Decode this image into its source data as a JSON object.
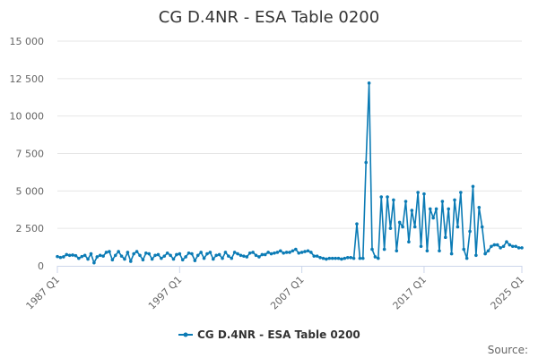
{
  "chart_data": {
    "type": "line",
    "title": "CG D.4NR - ESA Table 0200",
    "xlabel": "",
    "ylabel": "",
    "ylim": [
      0,
      15000
    ],
    "y_ticks": [
      {
        "value": 0,
        "label": "0"
      },
      {
        "value": 2500,
        "label": "2 500"
      },
      {
        "value": 5000,
        "label": "5 000"
      },
      {
        "value": 7500,
        "label": "7 500"
      },
      {
        "value": 10000,
        "label": "10 000"
      },
      {
        "value": 12500,
        "label": "12 500"
      },
      {
        "value": 15000,
        "label": "15 000"
      }
    ],
    "x_range": [
      "1987 Q1",
      "2025 Q1"
    ],
    "x_ticks": [
      "1987 Q1",
      "1997 Q1",
      "2007 Q1",
      "2017 Q1",
      "2025 Q1"
    ],
    "grid": "horizontal",
    "legend_position": "bottom",
    "series": [
      {
        "name": "CG D.4NR - ESA Table 0200",
        "color": "#0b7bb5",
        "points": [
          [
            "1987 Q1",
            620
          ],
          [
            "1987 Q2",
            560
          ],
          [
            "1987 Q3",
            600
          ],
          [
            "1987 Q4",
            750
          ],
          [
            "1988 Q1",
            700
          ],
          [
            "1988 Q2",
            720
          ],
          [
            "1988 Q3",
            680
          ],
          [
            "1988 Q4",
            500
          ],
          [
            "1989 Q1",
            620
          ],
          [
            "1989 Q2",
            700
          ],
          [
            "1989 Q3",
            450
          ],
          [
            "1989 Q4",
            800
          ],
          [
            "1990 Q1",
            200
          ],
          [
            "1990 Q2",
            600
          ],
          [
            "1990 Q3",
            700
          ],
          [
            "1990 Q4",
            650
          ],
          [
            "1991 Q1",
            900
          ],
          [
            "1991 Q2",
            950
          ],
          [
            "1991 Q3",
            400
          ],
          [
            "1991 Q4",
            700
          ],
          [
            "1992 Q1",
            950
          ],
          [
            "1992 Q2",
            650
          ],
          [
            "1992 Q3",
            450
          ],
          [
            "1992 Q4",
            900
          ],
          [
            "1993 Q1",
            300
          ],
          [
            "1993 Q2",
            800
          ],
          [
            "1993 Q3",
            950
          ],
          [
            "1993 Q4",
            700
          ],
          [
            "1994 Q1",
            400
          ],
          [
            "1994 Q2",
            850
          ],
          [
            "1994 Q3",
            800
          ],
          [
            "1994 Q4",
            450
          ],
          [
            "1995 Q1",
            700
          ],
          [
            "1995 Q2",
            750
          ],
          [
            "1995 Q3",
            500
          ],
          [
            "1995 Q4",
            650
          ],
          [
            "1996 Q1",
            850
          ],
          [
            "1996 Q2",
            700
          ],
          [
            "1996 Q3",
            450
          ],
          [
            "1996 Q4",
            750
          ],
          [
            "1997 Q1",
            800
          ],
          [
            "1997 Q2",
            400
          ],
          [
            "1997 Q3",
            600
          ],
          [
            "1997 Q4",
            850
          ],
          [
            "1998 Q1",
            800
          ],
          [
            "1998 Q2",
            350
          ],
          [
            "1998 Q3",
            700
          ],
          [
            "1998 Q4",
            900
          ],
          [
            "1999 Q1",
            500
          ],
          [
            "1999 Q2",
            800
          ],
          [
            "1999 Q3",
            900
          ],
          [
            "1999 Q4",
            450
          ],
          [
            "2000 Q1",
            700
          ],
          [
            "2000 Q2",
            750
          ],
          [
            "2000 Q3",
            500
          ],
          [
            "2000 Q4",
            900
          ],
          [
            "2001 Q1",
            650
          ],
          [
            "2001 Q2",
            500
          ],
          [
            "2001 Q3",
            900
          ],
          [
            "2001 Q4",
            800
          ],
          [
            "2002 Q1",
            700
          ],
          [
            "2002 Q2",
            650
          ],
          [
            "2002 Q3",
            600
          ],
          [
            "2002 Q4",
            850
          ],
          [
            "2003 Q1",
            900
          ],
          [
            "2003 Q2",
            700
          ],
          [
            "2003 Q3",
            600
          ],
          [
            "2003 Q4",
            750
          ],
          [
            "2004 Q1",
            750
          ],
          [
            "2004 Q2",
            900
          ],
          [
            "2004 Q3",
            800
          ],
          [
            "2004 Q4",
            850
          ],
          [
            "2005 Q1",
            900
          ],
          [
            "2005 Q2",
            1000
          ],
          [
            "2005 Q3",
            850
          ],
          [
            "2005 Q4",
            900
          ],
          [
            "2006 Q1",
            900
          ],
          [
            "2006 Q2",
            1000
          ],
          [
            "2006 Q3",
            1100
          ],
          [
            "2006 Q4",
            850
          ],
          [
            "2007 Q1",
            900
          ],
          [
            "2007 Q2",
            950
          ],
          [
            "2007 Q3",
            1000
          ],
          [
            "2007 Q4",
            900
          ],
          [
            "2008 Q1",
            650
          ],
          [
            "2008 Q2",
            650
          ],
          [
            "2008 Q3",
            550
          ],
          [
            "2008 Q4",
            500
          ],
          [
            "2009 Q1",
            450
          ],
          [
            "2009 Q2",
            500
          ],
          [
            "2009 Q3",
            500
          ],
          [
            "2009 Q4",
            500
          ],
          [
            "2010 Q1",
            500
          ],
          [
            "2010 Q2",
            450
          ],
          [
            "2010 Q3",
            500
          ],
          [
            "2010 Q4",
            550
          ],
          [
            "2011 Q1",
            550
          ],
          [
            "2011 Q2",
            500
          ],
          [
            "2011 Q3",
            2800
          ],
          [
            "2011 Q4",
            500
          ],
          [
            "2012 Q1",
            500
          ],
          [
            "2012 Q2",
            6900
          ],
          [
            "2012 Q3",
            12200
          ],
          [
            "2012 Q4",
            1100
          ],
          [
            "2013 Q1",
            600
          ],
          [
            "2013 Q2",
            500
          ],
          [
            "2013 Q3",
            4600
          ],
          [
            "2013 Q4",
            1100
          ],
          [
            "2014 Q1",
            4600
          ],
          [
            "2014 Q2",
            2500
          ],
          [
            "2014 Q3",
            4400
          ],
          [
            "2014 Q4",
            1000
          ],
          [
            "2015 Q1",
            2900
          ],
          [
            "2015 Q2",
            2600
          ],
          [
            "2015 Q3",
            4300
          ],
          [
            "2015 Q4",
            1600
          ],
          [
            "2016 Q1",
            3700
          ],
          [
            "2016 Q2",
            2600
          ],
          [
            "2016 Q3",
            4900
          ],
          [
            "2016 Q4",
            1300
          ],
          [
            "2017 Q1",
            4800
          ],
          [
            "2017 Q2",
            1000
          ],
          [
            "2017 Q3",
            3800
          ],
          [
            "2017 Q4",
            3200
          ],
          [
            "2018 Q1",
            3800
          ],
          [
            "2018 Q2",
            1000
          ],
          [
            "2018 Q3",
            4300
          ],
          [
            "2018 Q4",
            1900
          ],
          [
            "2019 Q1",
            3800
          ],
          [
            "2019 Q2",
            800
          ],
          [
            "2019 Q3",
            4400
          ],
          [
            "2019 Q4",
            2600
          ],
          [
            "2020 Q1",
            4900
          ],
          [
            "2020 Q2",
            1100
          ],
          [
            "2020 Q3",
            500
          ],
          [
            "2020 Q4",
            2300
          ],
          [
            "2021 Q1",
            5300
          ],
          [
            "2021 Q2",
            700
          ],
          [
            "2021 Q3",
            3900
          ],
          [
            "2021 Q4",
            2600
          ],
          [
            "2022 Q1",
            800
          ],
          [
            "2022 Q2",
            1000
          ],
          [
            "2022 Q3",
            1300
          ],
          [
            "2022 Q4",
            1400
          ],
          [
            "2023 Q1",
            1400
          ],
          [
            "2023 Q2",
            1200
          ],
          [
            "2023 Q3",
            1300
          ],
          [
            "2023 Q4",
            1600
          ],
          [
            "2024 Q1",
            1400
          ],
          [
            "2024 Q2",
            1300
          ],
          [
            "2024 Q3",
            1300
          ],
          [
            "2024 Q4",
            1200
          ],
          [
            "2025 Q1",
            1200
          ]
        ]
      }
    ]
  },
  "credits": {
    "label": "Source:"
  }
}
